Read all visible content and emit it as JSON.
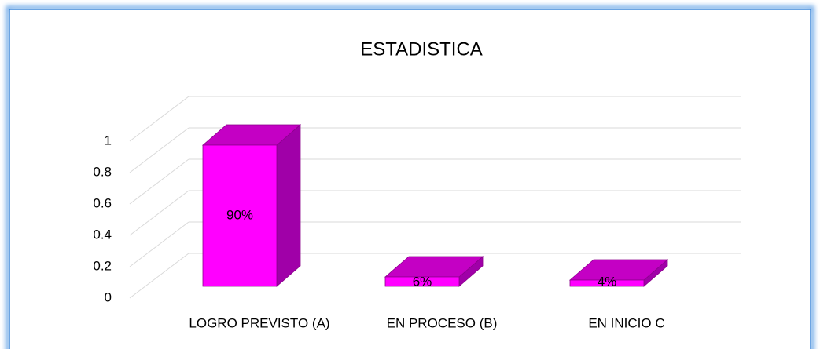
{
  "chart_data": {
    "type": "bar3d",
    "title": "ESTADISTICA",
    "categories": [
      "LOGRO PREVISTO (A)",
      "EN PROCESO (B)",
      "EN INICIO C"
    ],
    "values": [
      0.9,
      0.06,
      0.04
    ],
    "value_labels": [
      "90%",
      "6%",
      "4%"
    ],
    "color": "#ff00ff",
    "ylim": [
      0,
      1
    ],
    "yticks": [
      0,
      0.2,
      0.4,
      0.6,
      0.8,
      1
    ],
    "grid": true
  }
}
